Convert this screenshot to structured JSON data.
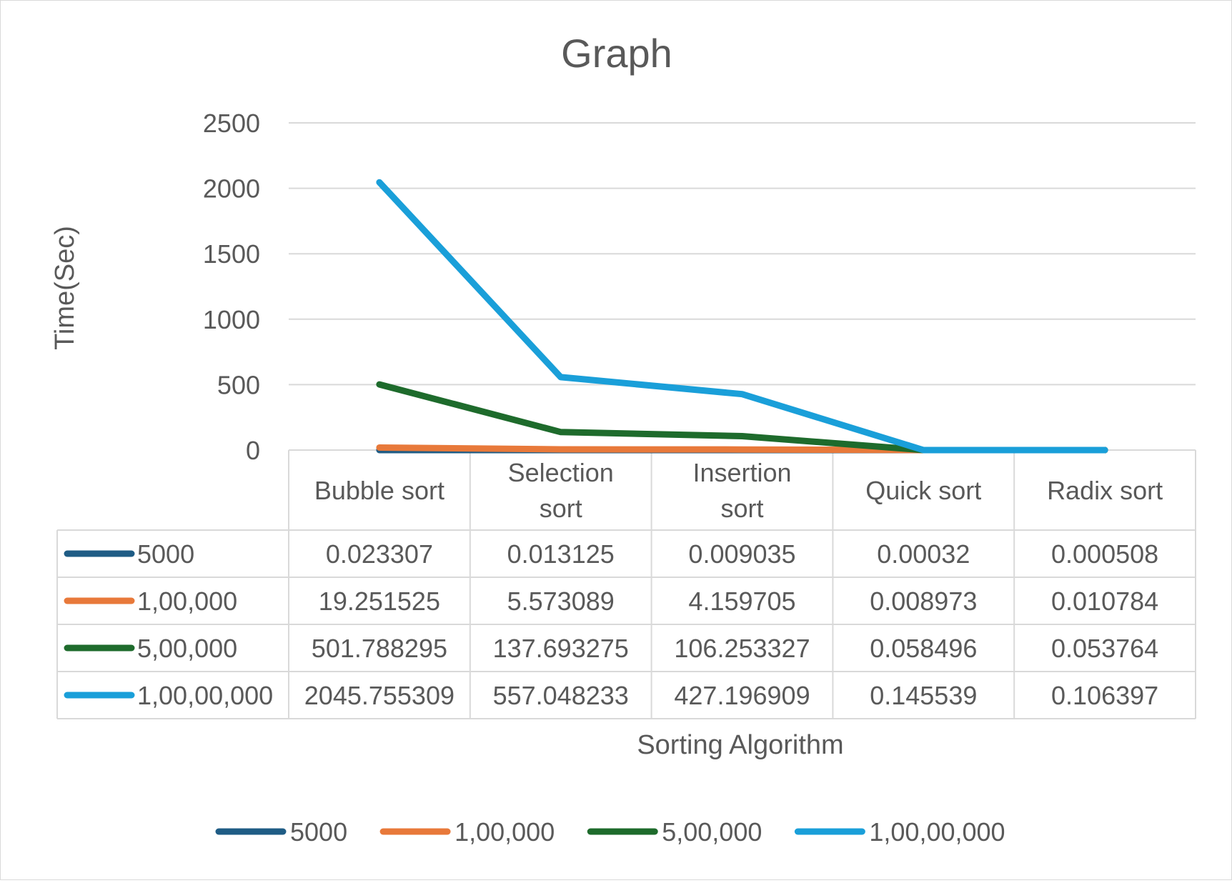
{
  "chart_data": {
    "type": "line",
    "title": "Graph",
    "xlabel": "Sorting Algorithm",
    "ylabel": "Time(Sec)",
    "categories": [
      "Bubble sort",
      "Selection sort",
      "Insertion sort",
      "Quick sort",
      "Radix sort"
    ],
    "category_lines": [
      [
        "Bubble sort"
      ],
      [
        "Selection",
        "sort"
      ],
      [
        "Insertion",
        "sort"
      ],
      [
        "Quick sort"
      ],
      [
        "Radix sort"
      ]
    ],
    "ylim": [
      0,
      2500
    ],
    "yticks": [
      0,
      500,
      1000,
      1500,
      2000,
      2500
    ],
    "grid": true,
    "legend_position": "bottom",
    "data_table": true,
    "series": [
      {
        "name": "5000",
        "color": "#1f5c85",
        "values": [
          0.023307,
          0.013125,
          0.009035,
          0.00032,
          0.000508
        ],
        "labels": [
          "0.023307",
          "0.013125",
          "0.009035",
          "0.00032",
          "0.000508"
        ]
      },
      {
        "name": "1,00,000",
        "color": "#e8793a",
        "values": [
          19.251525,
          5.573089,
          4.159705,
          0.008973,
          0.010784
        ],
        "labels": [
          "19.251525",
          "5.573089",
          "4.159705",
          "0.008973",
          "0.010784"
        ]
      },
      {
        "name": "5,00,000",
        "color": "#1e6b2c",
        "values": [
          501.788295,
          137.693275,
          106.253327,
          0.058496,
          0.053764
        ],
        "labels": [
          "501.788295",
          "137.693275",
          "106.253327",
          "0.058496",
          "0.053764"
        ]
      },
      {
        "name": "1,00,00,000",
        "color": "#1a9fd9",
        "values": [
          2045.755309,
          557.048233,
          427.196909,
          0.145539,
          0.106397
        ],
        "labels": [
          "2045.755309",
          "557.048233",
          "427.196909",
          "0.145539",
          "0.106397"
        ]
      }
    ]
  }
}
